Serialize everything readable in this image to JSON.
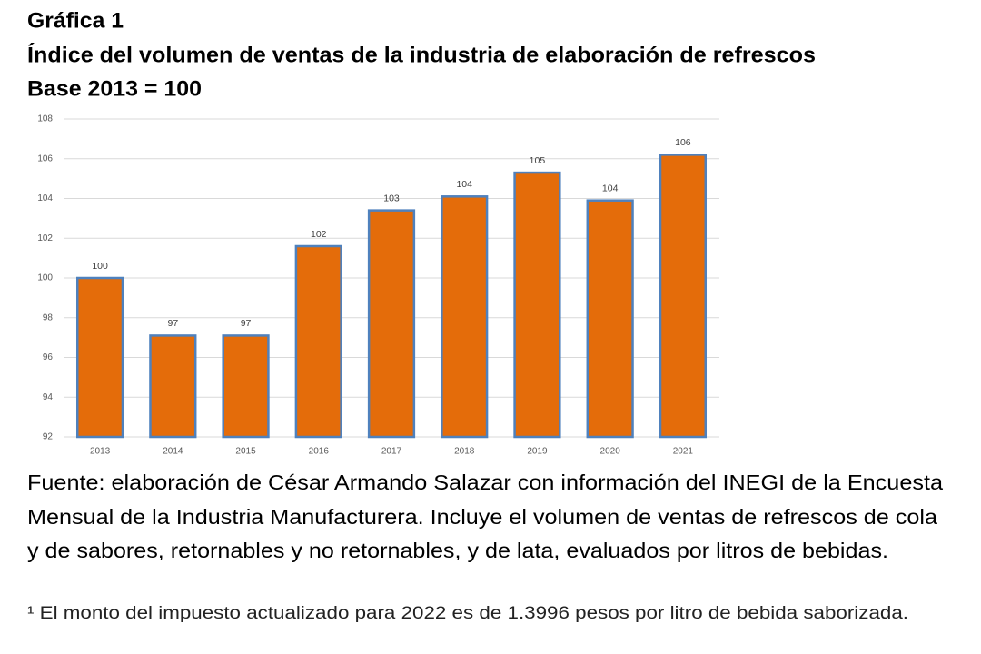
{
  "chart_data": {
    "type": "bar",
    "title": "Gráfica 1",
    "subtitle": "Índice del volumen de ventas de la industria de elaboración de refrescos",
    "base_note": "Base 2013 = 100",
    "categories": [
      "2013",
      "2014",
      "2015",
      "2016",
      "2017",
      "2018",
      "2019",
      "2020",
      "2021"
    ],
    "values": [
      100.0,
      97.1,
      97.1,
      101.6,
      103.4,
      104.1,
      105.3,
      103.9,
      106.2
    ],
    "value_labels": [
      "100",
      "97",
      "97",
      "102",
      "103",
      "104",
      "105",
      "104",
      "106"
    ],
    "color": "#e46c0a",
    "edge_color": "#4f81bd",
    "ylim": [
      92,
      108
    ],
    "yticks": [
      92,
      94,
      96,
      98,
      100,
      102,
      104,
      106,
      108
    ],
    "grid": true,
    "source": [
      "Fuente: elaboración de César Armando Salazar con información del INEGI de la Encuesta",
      "Mensual de la Industria Manufacturera. Incluye el volumen de ventas de refrescos de cola",
      "y de sabores, retornables y no retornables, y de lata, evaluados por litros de bebidas."
    ],
    "footnote": "¹ El monto del impuesto actualizado para 2022 es de 1.3996 pesos por litro de bebida saborizada."
  }
}
